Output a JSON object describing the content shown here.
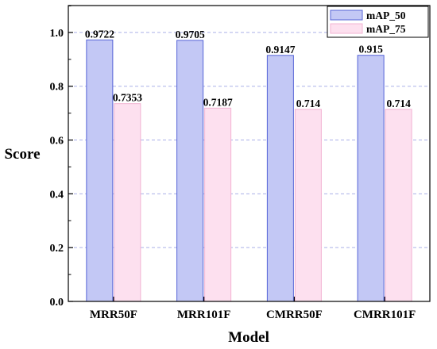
{
  "chart_data": {
    "type": "bar",
    "categories": [
      "MRR50F",
      "MRR101F",
      "CMRR50F",
      "CMRR101F"
    ],
    "series": [
      {
        "name": "mAP_50",
        "values": [
          0.9722,
          0.9705,
          0.9147,
          0.915
        ],
        "labels": [
          "0.9722",
          "0.9705",
          "0.9147",
          "0.915"
        ],
        "fill": "#c3c8f5",
        "stroke": "#5563d6"
      },
      {
        "name": "mAP_75",
        "values": [
          0.7353,
          0.7187,
          0.714,
          0.714
        ],
        "labels": [
          "0.7353",
          "0.7187",
          "0.714",
          "0.714"
        ],
        "fill": "#fde0ef",
        "stroke": "#f2b3d3"
      }
    ],
    "xlabel": "Model",
    "ylabel": "Score",
    "ylim": [
      0,
      1.1
    ],
    "yticks": [
      0.0,
      0.2,
      0.4,
      0.6,
      0.8,
      1.0
    ],
    "ytick_labels": [
      "0.0",
      "0.2",
      "0.4",
      "0.6",
      "0.8",
      "1.0"
    ],
    "grid": "horizontal dashed",
    "legend": "top-right"
  }
}
